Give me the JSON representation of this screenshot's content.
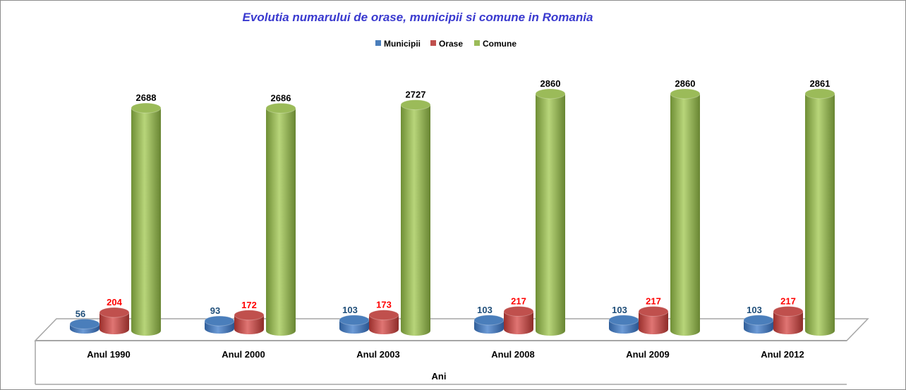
{
  "chart_data": {
    "type": "bar",
    "style": "3d-cylinder",
    "title": "Evolutia numarului de orase, municipii si comune in Romania",
    "xlabel": "Ani",
    "ylabel": "",
    "categories": [
      "Anul 1990",
      "Anul 2000",
      "Anul 2003",
      "Anul 2008",
      "Anul 2009",
      "Anul 2012"
    ],
    "series": [
      {
        "name": "Municipii",
        "color": "#4a7ebb",
        "label_color": "#1f4e79",
        "values": [
          56,
          93,
          103,
          103,
          103,
          103
        ]
      },
      {
        "name": "Orase",
        "color": "#c0504d",
        "label_color": "#ff0000",
        "values": [
          204,
          172,
          173,
          217,
          217,
          217
        ]
      },
      {
        "name": "Comune",
        "color": "#9bbb59",
        "label_color": "#000000",
        "values": [
          2688,
          2686,
          2727,
          2860,
          2860,
          2861
        ]
      }
    ],
    "ylim": [
      0,
      2900
    ],
    "grid": false,
    "legend": "top-center"
  }
}
